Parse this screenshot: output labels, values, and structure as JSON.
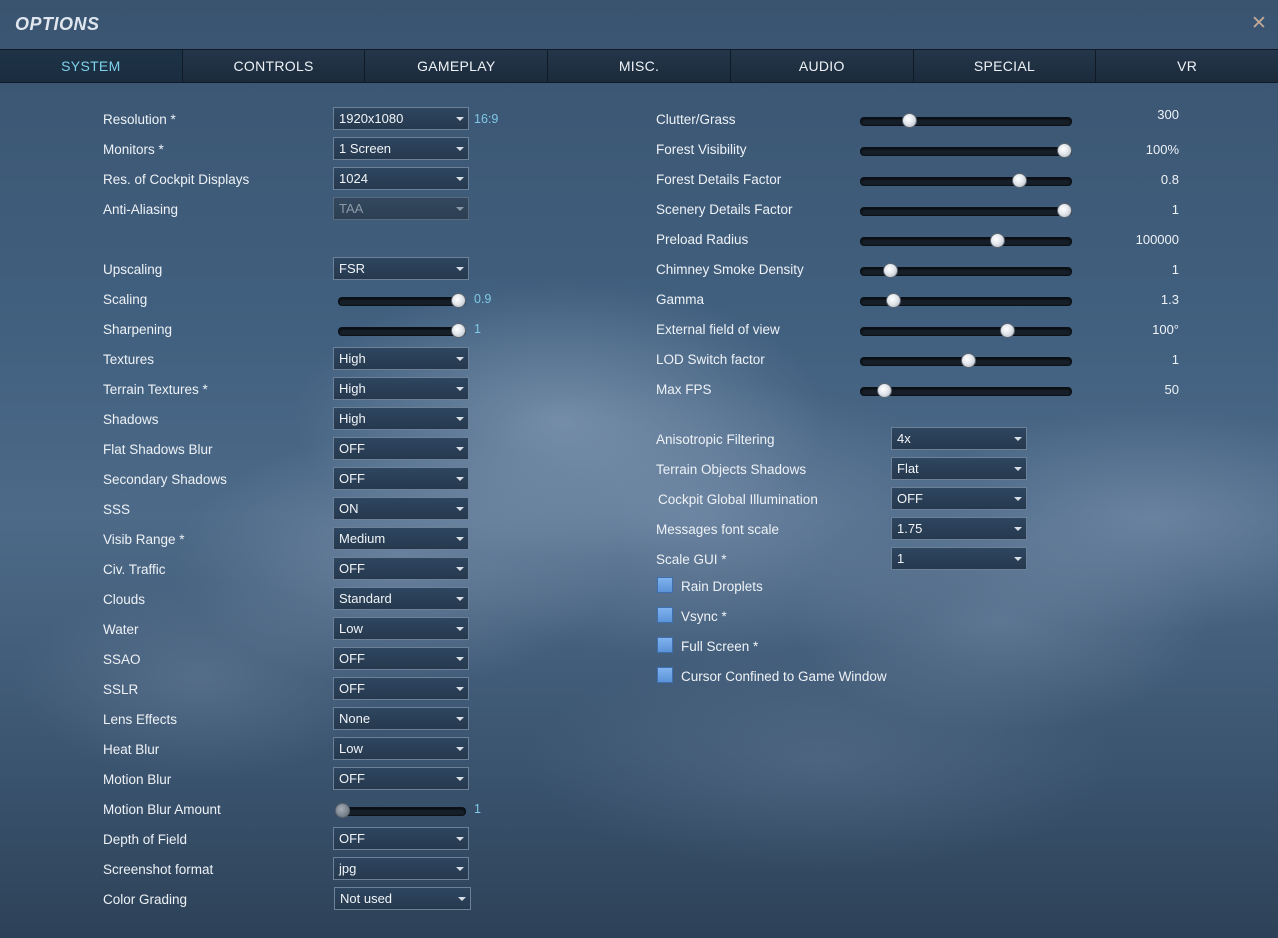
{
  "window": {
    "title": "OPTIONS",
    "close_icon": "close-icon"
  },
  "tabs": [
    {
      "label": "SYSTEM",
      "active": true
    },
    {
      "label": "CONTROLS"
    },
    {
      "label": "GAMEPLAY"
    },
    {
      "label": "MISC."
    },
    {
      "label": "AUDIO"
    },
    {
      "label": "SPECIAL"
    },
    {
      "label": "VR"
    }
  ],
  "left": {
    "resolution": {
      "label": "Resolution *",
      "value": "1920x1080",
      "aspect": "16:9"
    },
    "monitors": {
      "label": "Monitors *",
      "value": "1 Screen"
    },
    "cockpit_displays": {
      "label": "Res. of Cockpit Displays",
      "value": "1024"
    },
    "anti_aliasing": {
      "label": "Anti-Aliasing",
      "value": "TAA",
      "disabled": true
    },
    "upscaling": {
      "label": "Upscaling",
      "value": "FSR"
    },
    "scaling": {
      "label": "Scaling",
      "value": "0.9",
      "fraction": 1.0
    },
    "sharpening": {
      "label": "Sharpening",
      "value": "1",
      "fraction": 1.0
    },
    "textures": {
      "label": "Textures",
      "value": "High"
    },
    "terrain_textures": {
      "label": "Terrain Textures *",
      "value": "High"
    },
    "shadows": {
      "label": "Shadows",
      "value": "High"
    },
    "flat_shadows_blur": {
      "label": "Flat Shadows Blur",
      "value": "OFF"
    },
    "secondary_shadows": {
      "label": "Secondary Shadows",
      "value": "OFF"
    },
    "sss": {
      "label": "SSS",
      "value": "ON"
    },
    "visib_range": {
      "label": "Visib Range *",
      "value": "Medium"
    },
    "civ_traffic": {
      "label": "Civ. Traffic",
      "value": "OFF"
    },
    "clouds": {
      "label": "Clouds",
      "value": "Standard"
    },
    "water": {
      "label": "Water",
      "value": "Low"
    },
    "ssao": {
      "label": "SSAO",
      "value": "OFF"
    },
    "sslr": {
      "label": "SSLR",
      "value": "OFF"
    },
    "lens_effects": {
      "label": "Lens Effects",
      "value": "None"
    },
    "heat_blur": {
      "label": "Heat Blur",
      "value": "Low"
    },
    "motion_blur": {
      "label": "Motion Blur",
      "value": "OFF"
    },
    "motion_blur_amount": {
      "label": "Motion Blur Amount",
      "value": "1",
      "fraction": 0.0,
      "disabled": true
    },
    "depth_of_field": {
      "label": "Depth of Field",
      "value": "OFF"
    },
    "screenshot_format": {
      "label": "Screenshot format",
      "value": "jpg"
    },
    "color_grading": {
      "label": "Color Grading",
      "value": "Not used"
    }
  },
  "right": {
    "sliders": [
      {
        "label": "Clutter/Grass",
        "value": "300",
        "fraction": 0.21
      },
      {
        "label": "Forest Visibility",
        "value": "100%",
        "fraction": 1.0
      },
      {
        "label": "Forest Details Factor",
        "value": "0.8",
        "fraction": 0.77
      },
      {
        "label": "Scenery Details Factor",
        "value": "1",
        "fraction": 1.0
      },
      {
        "label": "Preload Radius",
        "value": "100000",
        "fraction": 0.66
      },
      {
        "label": "Chimney Smoke Density",
        "value": "1",
        "fraction": 0.11
      },
      {
        "label": "Gamma",
        "value": "1.3",
        "fraction": 0.13
      },
      {
        "label": "External field of view",
        "value": "100°",
        "fraction": 0.71
      },
      {
        "label": "LOD Switch factor",
        "value": "1",
        "fraction": 0.51
      },
      {
        "label": "Max FPS",
        "value": "50",
        "fraction": 0.08
      }
    ],
    "anisotropic": {
      "label": "Anisotropic Filtering",
      "value": "4x"
    },
    "terrain_objects_shadows": {
      "label": "Terrain Objects Shadows",
      "value": "Flat"
    },
    "cockpit_gi": {
      "label": "Cockpit Global Illumination",
      "value": "OFF"
    },
    "messages_font_scale": {
      "label": "Messages font scale",
      "value": "1.75"
    },
    "scale_gui": {
      "label": "Scale GUI *",
      "value": "1"
    },
    "checkboxes": [
      {
        "label": "Rain Droplets"
      },
      {
        "label": "Vsync *"
      },
      {
        "label": "Full Screen *"
      },
      {
        "label": "Cursor Confined to Game Window"
      }
    ]
  },
  "colors": {
    "accent": "#7fd0ec",
    "tabbar": "#1d2e40",
    "checkbox": "#6aa2e4"
  }
}
